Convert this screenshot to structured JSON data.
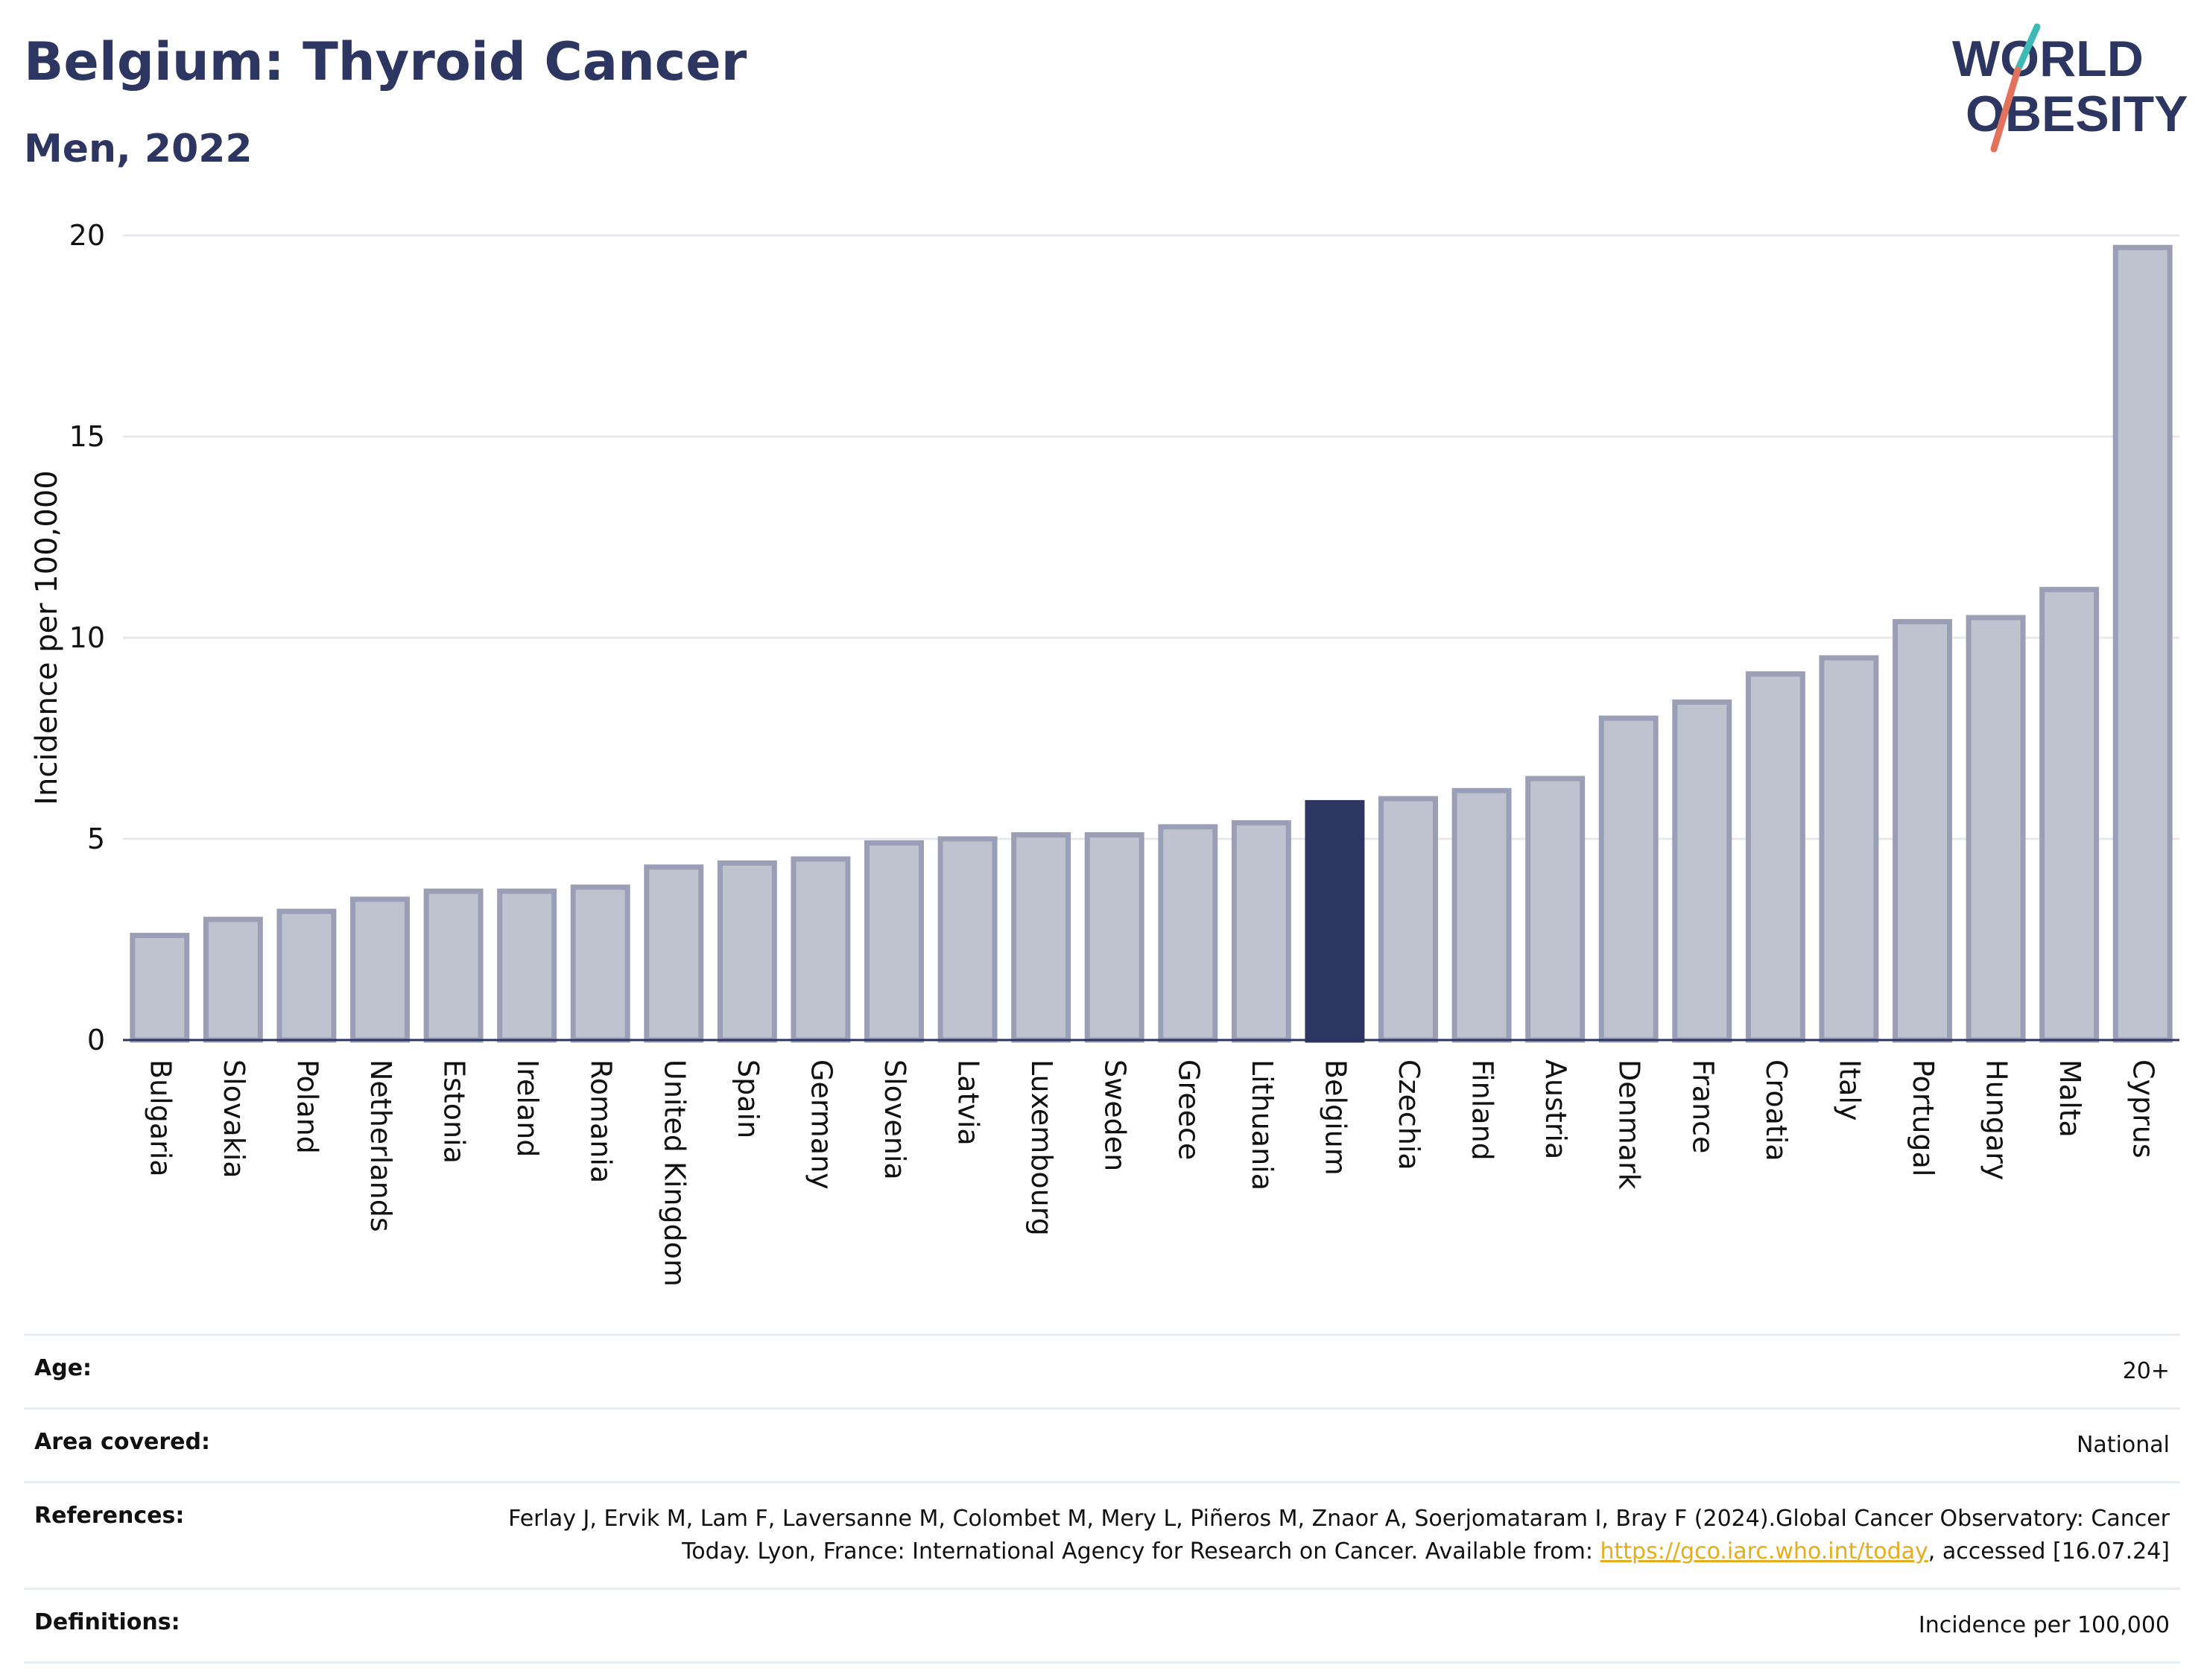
{
  "header": {
    "title": "Belgium: Thyroid Cancer",
    "subtitle": "Men, 2022"
  },
  "logo": {
    "line1": "WORLD",
    "line2": "OBESITY",
    "colors": {
      "text": "#2d3561",
      "slash_teal": "#3fb9b5",
      "slash_red": "#e2725b"
    }
  },
  "chart_data": {
    "type": "bar",
    "title": "",
    "xlabel": "",
    "ylabel": "Incidence per 100,000",
    "ylim": [
      0,
      20
    ],
    "yticks": [
      0,
      5,
      10,
      15,
      20
    ],
    "grid": true,
    "highlight": "Belgium",
    "colors": {
      "bar": "#bfc2cf",
      "bar_edge": "#9a9fb6",
      "highlight": "#2d3561",
      "grid": "#e6e9ee",
      "axis": "#2d3561"
    },
    "categories": [
      "Bulgaria",
      "Slovakia",
      "Poland",
      "Netherlands",
      "Estonia",
      "Ireland",
      "Romania",
      "United Kingdom",
      "Spain",
      "Germany",
      "Slovenia",
      "Latvia",
      "Luxembourg",
      "Sweden",
      "Greece",
      "Lithuania",
      "Belgium",
      "Czechia",
      "Finland",
      "Austria",
      "Denmark",
      "France",
      "Croatia",
      "Italy",
      "Portugal",
      "Hungary",
      "Malta",
      "Cyprus"
    ],
    "values": [
      2.6,
      3.0,
      3.2,
      3.5,
      3.7,
      3.7,
      3.8,
      4.3,
      4.4,
      4.5,
      4.9,
      5.0,
      5.1,
      5.1,
      5.3,
      5.4,
      5.9,
      6.0,
      6.2,
      6.5,
      8.0,
      8.4,
      9.1,
      9.5,
      10.4,
      10.5,
      11.2,
      19.7
    ]
  },
  "meta": {
    "age": {
      "label": "Age:",
      "value": "20+"
    },
    "area": {
      "label": "Area covered:",
      "value": "National"
    },
    "references": {
      "label": "References:",
      "text_before": "Ferlay J, Ervik M, Lam F, Laversanne M, Colombet M, Mery L, Piñeros M, Znaor A, Soerjomataram I, Bray F (2024).Global Cancer Observatory: Cancer Today. Lyon, France: International Agency for Research on Cancer. Available from: ",
      "link": "https://gco.iarc.who.int/today",
      "text_after": ", accessed [16.07.24]"
    },
    "definitions": {
      "label": "Definitions:",
      "value": "Incidence per 100,000"
    }
  }
}
